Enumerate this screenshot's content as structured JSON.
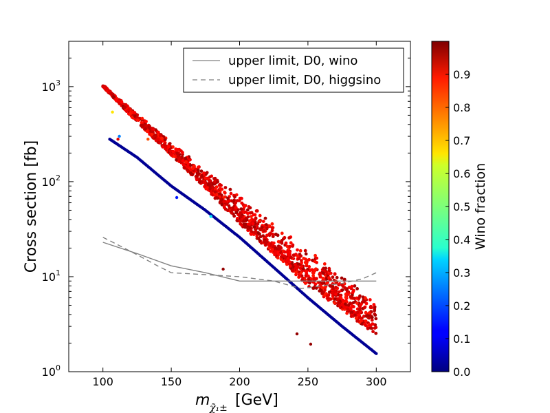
{
  "chart_data": {
    "type": "scatter",
    "title": "",
    "xlabel_symbol": "m",
    "xlabel_sub": "χ̃₁±",
    "xlabel_unit": "[GeV]",
    "ylabel": "Cross section [fb]",
    "xlim": [
      75,
      325
    ],
    "ylim": [
      1,
      3000
    ],
    "yscale": "log",
    "x_ticks": [
      100,
      150,
      200,
      250,
      300
    ],
    "x_tick_labels": [
      "100",
      "150",
      "200",
      "250",
      "300"
    ],
    "y_ticks": [
      1,
      10,
      100,
      1000
    ],
    "y_tick_labels": [
      {
        "base": "10",
        "exp": "0"
      },
      {
        "base": "10",
        "exp": "1"
      },
      {
        "base": "10",
        "exp": "2"
      },
      {
        "base": "10",
        "exp": "3"
      }
    ],
    "legend": [
      {
        "label": "upper limit, D0, wino",
        "style": "solid",
        "color": "#808080"
      },
      {
        "label": "upper limit, D0, higgsino",
        "style": "dashed",
        "color": "#808080"
      }
    ],
    "series": [
      {
        "name": "upper limit, D0, wino",
        "kind": "line",
        "style": "solid",
        "x": [
          100,
          125,
          150,
          175,
          200,
          225,
          250,
          275,
          300
        ],
        "y": [
          23,
          17.5,
          13,
          11,
          9,
          9,
          9,
          9,
          9
        ]
      },
      {
        "name": "upper limit, D0, higgsino",
        "kind": "line",
        "style": "dashed",
        "x": [
          100,
          110,
          125,
          140,
          150,
          175,
          200,
          225,
          245,
          260,
          275,
          290,
          300
        ],
        "y": [
          26,
          22,
          17,
          13,
          11,
          10.5,
          10,
          9,
          7.5,
          8,
          8.5,
          9.5,
          11
        ]
      },
      {
        "name": "wino-like points (upper band)",
        "kind": "band",
        "wino_fraction": 0.97,
        "upper_x": [
          100,
          125,
          150,
          175,
          200,
          225,
          250,
          275,
          300
        ],
        "upper_y": [
          1050,
          520,
          260,
          135,
          70,
          37,
          19.5,
          10.5,
          5.2
        ],
        "lower_x": [
          100,
          125,
          150,
          175,
          200,
          225,
          250,
          275,
          300
        ],
        "lower_y": [
          1000,
          420,
          190,
          85,
          36,
          17,
          8,
          4.5,
          2.4
        ]
      },
      {
        "name": "higgsino-like points (lower line)",
        "kind": "line-points",
        "wino_fraction": 0.02,
        "x": [
          105,
          125,
          150,
          175,
          200,
          225,
          250,
          275,
          300
        ],
        "y": [
          280,
          180,
          90,
          50,
          26,
          12.5,
          6,
          3,
          1.55
        ]
      },
      {
        "name": "outlier points",
        "kind": "scatter",
        "points": [
          {
            "x": 107,
            "y": 540,
            "w": 0.65
          },
          {
            "x": 112,
            "y": 300,
            "w": 0.25
          },
          {
            "x": 111,
            "y": 280,
            "w": 0.9
          },
          {
            "x": 133,
            "y": 280,
            "w": 0.8
          },
          {
            "x": 154,
            "y": 68,
            "w": 0.15
          },
          {
            "x": 179,
            "y": 43,
            "w": 0.35
          },
          {
            "x": 188,
            "y": 12,
            "w": 0.98
          },
          {
            "x": 242,
            "y": 2.5,
            "w": 0.98
          },
          {
            "x": 252,
            "y": 1.95,
            "w": 0.98
          },
          {
            "x": 245,
            "y": 11,
            "w": 0.85
          }
        ]
      }
    ],
    "colorbar": {
      "label": "Wino fraction",
      "min": 0.0,
      "max": 1.0,
      "colormap": "jet",
      "ticks": [
        0.0,
        0.1,
        0.2,
        0.3,
        0.4,
        0.5,
        0.6,
        0.7,
        0.8,
        0.9
      ],
      "tick_labels": [
        "0.0",
        "0.1",
        "0.2",
        "0.3",
        "0.4",
        "0.5",
        "0.6",
        "0.7",
        "0.8",
        "0.9"
      ]
    }
  }
}
